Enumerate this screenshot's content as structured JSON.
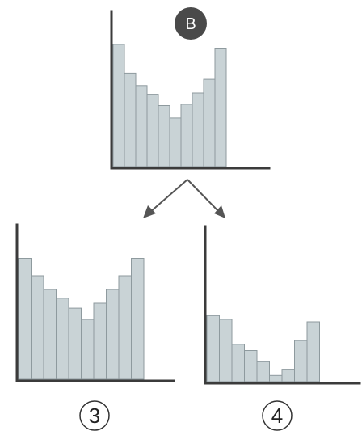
{
  "badge": {
    "label": "B",
    "color": "#4a4a4a"
  },
  "labels": {
    "left": "3",
    "right": "4"
  },
  "chart_data": [
    {
      "type": "bar",
      "id": "top",
      "values": [
        9.8,
        7.5,
        6.5,
        5.8,
        4.9,
        3.9,
        5.0,
        5.9,
        7.0,
        9.5
      ],
      "ylim": [
        0,
        12
      ]
    },
    {
      "type": "bar",
      "id": "left",
      "values": [
        9.7,
        8.3,
        7.2,
        6.5,
        5.7,
        4.8,
        6.1,
        7.2,
        8.3,
        9.7
      ],
      "ylim": [
        0,
        12
      ]
    },
    {
      "type": "bar",
      "id": "right",
      "values": [
        5.3,
        5.0,
        3.0,
        2.5,
        1.6,
        0.5,
        1.0,
        3.3,
        4.8
      ],
      "ylim": [
        0,
        12
      ]
    }
  ],
  "colors": {
    "bar_fill": "#c9d3d6",
    "bar_stroke": "#8e9a9e",
    "axis": "#3b3b3b"
  }
}
